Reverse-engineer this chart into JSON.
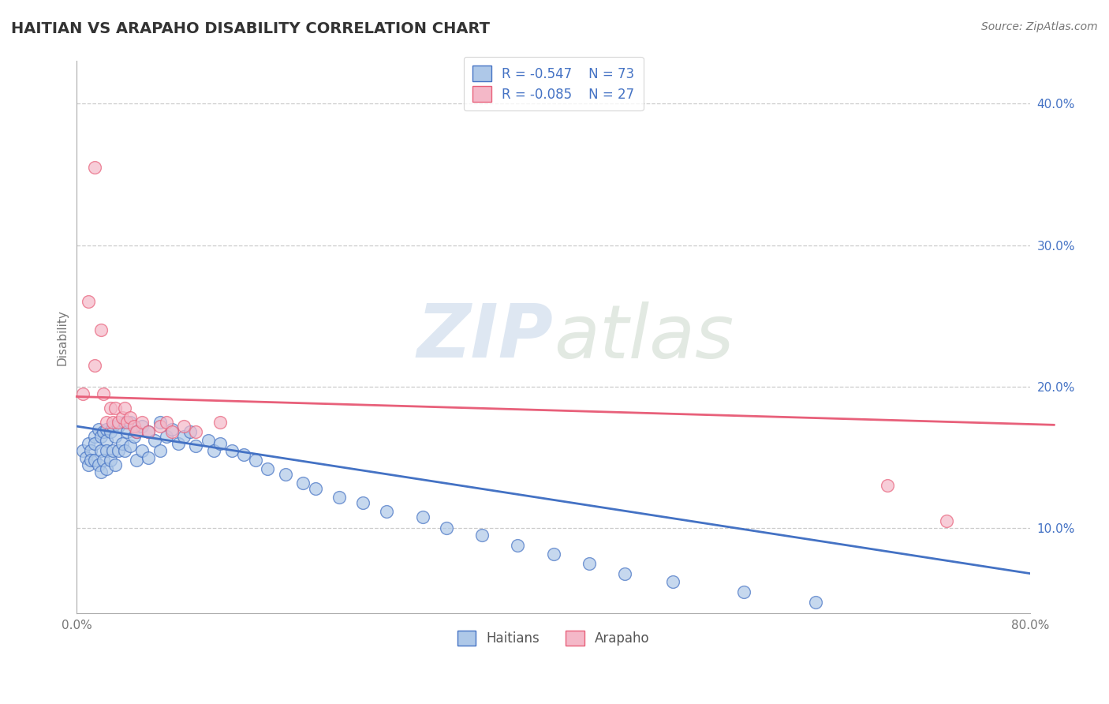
{
  "title": "HAITIAN VS ARAPAHO DISABILITY CORRELATION CHART",
  "source": "Source: ZipAtlas.com",
  "ylabel": "Disability",
  "watermark_zip": "ZIP",
  "watermark_atlas": "atlas",
  "xlim": [
    0.0,
    0.8
  ],
  "ylim": [
    0.04,
    0.43
  ],
  "xticks": [
    0.0,
    0.1,
    0.2,
    0.3,
    0.4,
    0.5,
    0.6,
    0.7,
    0.8
  ],
  "xticklabels": [
    "0.0%",
    "",
    "",
    "",
    "",
    "",
    "",
    "",
    "80.0%"
  ],
  "yticks": [
    0.1,
    0.2,
    0.3,
    0.4
  ],
  "yticklabels": [
    "10.0%",
    "20.0%",
    "30.0%",
    "40.0%"
  ],
  "blue_color": "#aec8e8",
  "pink_color": "#f4b8c8",
  "blue_edge_color": "#4472c4",
  "pink_edge_color": "#e8607a",
  "blue_line_color": "#4472c4",
  "pink_line_color": "#e8607a",
  "blue_r": -0.547,
  "blue_n": 73,
  "pink_r": -0.085,
  "pink_n": 27,
  "title_color": "#333333",
  "source_color": "#777777",
  "axis_color": "#aaaaaa",
  "grid_color": "#cccccc",
  "tick_color": "#4472c4",
  "ylabel_color": "#777777",
  "legend_text_color": "#4472c4",
  "blue_scatter_x": [
    0.005,
    0.008,
    0.01,
    0.01,
    0.012,
    0.012,
    0.015,
    0.015,
    0.015,
    0.018,
    0.018,
    0.02,
    0.02,
    0.02,
    0.022,
    0.022,
    0.025,
    0.025,
    0.025,
    0.025,
    0.028,
    0.028,
    0.03,
    0.03,
    0.032,
    0.032,
    0.035,
    0.035,
    0.038,
    0.04,
    0.04,
    0.042,
    0.045,
    0.045,
    0.048,
    0.05,
    0.05,
    0.055,
    0.055,
    0.06,
    0.06,
    0.065,
    0.07,
    0.07,
    0.075,
    0.08,
    0.085,
    0.09,
    0.095,
    0.1,
    0.11,
    0.115,
    0.12,
    0.13,
    0.14,
    0.15,
    0.16,
    0.175,
    0.19,
    0.2,
    0.22,
    0.24,
    0.26,
    0.29,
    0.31,
    0.34,
    0.37,
    0.4,
    0.43,
    0.46,
    0.5,
    0.56,
    0.62
  ],
  "blue_scatter_y": [
    0.155,
    0.15,
    0.16,
    0.145,
    0.155,
    0.148,
    0.165,
    0.16,
    0.148,
    0.17,
    0.145,
    0.165,
    0.155,
    0.14,
    0.168,
    0.148,
    0.17,
    0.162,
    0.155,
    0.142,
    0.168,
    0.148,
    0.172,
    0.155,
    0.165,
    0.145,
    0.172,
    0.155,
    0.16,
    0.175,
    0.155,
    0.168,
    0.175,
    0.158,
    0.165,
    0.168,
    0.148,
    0.172,
    0.155,
    0.168,
    0.15,
    0.162,
    0.175,
    0.155,
    0.165,
    0.17,
    0.16,
    0.165,
    0.168,
    0.158,
    0.162,
    0.155,
    0.16,
    0.155,
    0.152,
    0.148,
    0.142,
    0.138,
    0.132,
    0.128,
    0.122,
    0.118,
    0.112,
    0.108,
    0.1,
    0.095,
    0.088,
    0.082,
    0.075,
    0.068,
    0.062,
    0.055,
    0.048
  ],
  "pink_scatter_x": [
    0.005,
    0.01,
    0.015,
    0.015,
    0.02,
    0.022,
    0.025,
    0.028,
    0.03,
    0.032,
    0.035,
    0.038,
    0.04,
    0.042,
    0.045,
    0.048,
    0.05,
    0.055,
    0.06,
    0.07,
    0.075,
    0.08,
    0.09,
    0.1,
    0.12,
    0.68,
    0.73
  ],
  "pink_scatter_y": [
    0.195,
    0.26,
    0.355,
    0.215,
    0.24,
    0.195,
    0.175,
    0.185,
    0.175,
    0.185,
    0.175,
    0.178,
    0.185,
    0.175,
    0.178,
    0.172,
    0.168,
    0.175,
    0.168,
    0.172,
    0.175,
    0.168,
    0.172,
    0.168,
    0.175,
    0.13,
    0.105
  ],
  "blue_line_start_y": 0.172,
  "blue_line_end_y": 0.068,
  "pink_line_start_y": 0.193,
  "pink_line_end_y": 0.173
}
